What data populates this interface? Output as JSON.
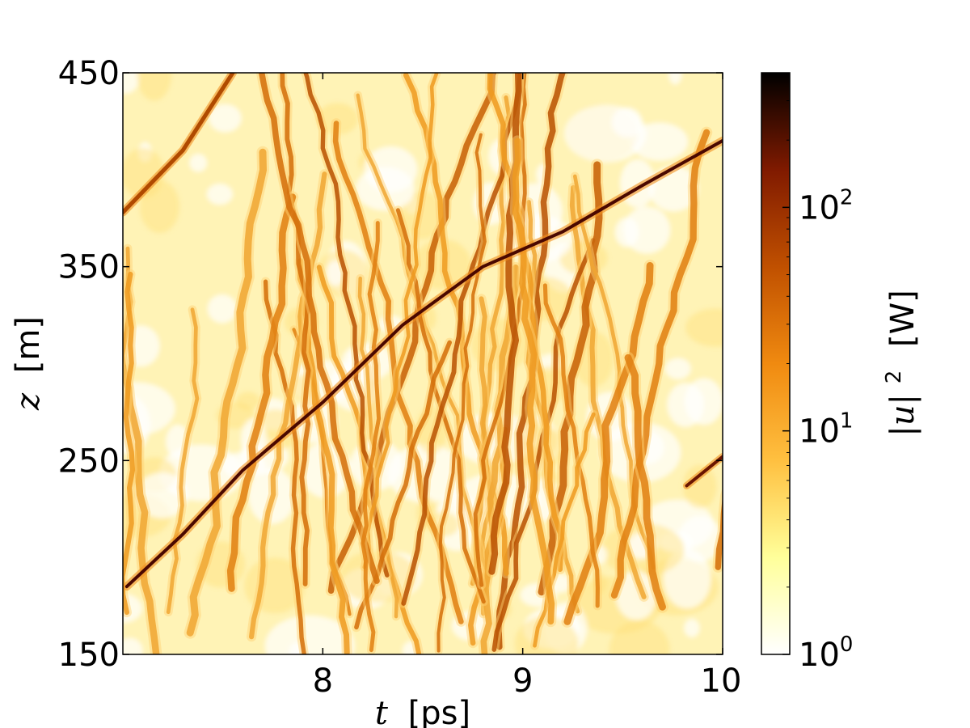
{
  "chart_data": {
    "type": "heatmap",
    "xlabel": {
      "var": "t",
      "unit": "[ps]"
    },
    "ylabel": {
      "var": "z",
      "unit": "[m]"
    },
    "xlim": [
      7,
      10
    ],
    "ylim": [
      150,
      450
    ],
    "xticks": [
      {
        "value": 8,
        "label": "8"
      },
      {
        "value": 9,
        "label": "9"
      },
      {
        "value": 10,
        "label": "10"
      }
    ],
    "yticks": [
      {
        "value": 150,
        "label": "150"
      },
      {
        "value": 250,
        "label": "250"
      },
      {
        "value": 350,
        "label": "350"
      },
      {
        "value": 450,
        "label": "450"
      }
    ],
    "colorbar": {
      "label": {
        "var": "|u|",
        "exp": "2",
        "unit": "[W]"
      },
      "scale": "log",
      "range": [
        1,
        400
      ],
      "ticks": [
        {
          "value": 1,
          "base": "10",
          "exp": "0"
        },
        {
          "value": 10,
          "base": "10",
          "exp": "1"
        },
        {
          "value": 100,
          "base": "10",
          "exp": "2"
        }
      ],
      "colormap": [
        "#ffffff",
        "#ffff9a",
        "#ffc040",
        "#f08a10",
        "#c05000",
        "#801a00",
        "#000000"
      ]
    },
    "features": {
      "dominant_soliton": [
        {
          "t": 7.02,
          "z": 185
        },
        {
          "t": 7.3,
          "z": 212
        },
        {
          "t": 7.6,
          "z": 245
        },
        {
          "t": 8.0,
          "z": 280
        },
        {
          "t": 8.4,
          "z": 320
        },
        {
          "t": 8.8,
          "z": 350
        },
        {
          "t": 9.2,
          "z": 368
        },
        {
          "t": 9.6,
          "z": 392
        },
        {
          "t": 10.0,
          "z": 415
        }
      ],
      "secondary_soliton": [
        {
          "t": 9.82,
          "z": 237
        },
        {
          "t": 10.0,
          "z": 252
        }
      ],
      "upper_diagonal": [
        {
          "t": 7.0,
          "z": 378
        },
        {
          "t": 7.3,
          "z": 410
        },
        {
          "t": 7.55,
          "z": 450
        }
      ]
    }
  }
}
